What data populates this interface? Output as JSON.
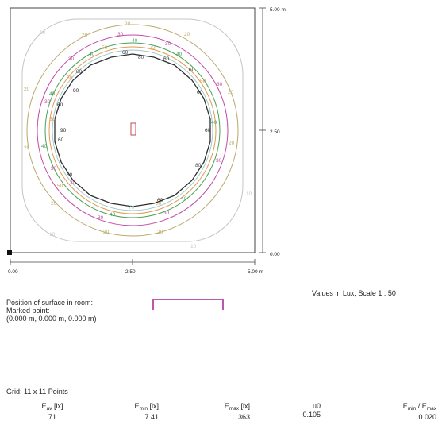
{
  "axis": {
    "x_ticks": [
      "0.00",
      "2.50",
      "5.00 m"
    ],
    "y_ticks": [
      "5.00 m",
      "2.50",
      "0.00"
    ]
  },
  "isolines": [
    {
      "value": "10",
      "color": "#c4c4c4"
    },
    {
      "value": "20",
      "color": "#b9a96a"
    },
    {
      "value": "30",
      "color": "#c04aa6"
    },
    {
      "value": "40",
      "color": "#48a05a"
    },
    {
      "value": "50",
      "color": "#e29a4f"
    },
    {
      "value": "60",
      "color": "#2e2e2e"
    },
    {
      "value": "70",
      "color": "#9ec9cf"
    },
    {
      "value": "80",
      "color": "#4a4a4a"
    },
    {
      "value": "90",
      "color": "#222222"
    }
  ],
  "scale_note": "Values in Lux, Scale 1 : 50",
  "position": {
    "line1": "Position of surface in room:",
    "line2": "Marked point:",
    "line3": "(0.000 m, 0.000 m, 0.000 m)"
  },
  "grid": "Grid: 11 x 11 Points",
  "stats": {
    "eav": {
      "sym": "E",
      "sub": "av",
      "unit": " [lx]",
      "value": "71"
    },
    "emin": {
      "sym": "E",
      "sub": "min",
      "unit": " [lx]",
      "value": "7.41"
    },
    "emax": {
      "sym": "E",
      "sub": "max",
      "unit": " [lx]",
      "value": "363"
    },
    "u0": {
      "label": "u0",
      "value": "0.105"
    },
    "ratio": {
      "sym": "E",
      "sub": "min",
      "sep": " / E",
      "sub2": "max",
      "value": "0.020"
    }
  },
  "colors": {
    "frame": "#444444",
    "locator": "#b858b0",
    "marker": "#c04a4a"
  }
}
